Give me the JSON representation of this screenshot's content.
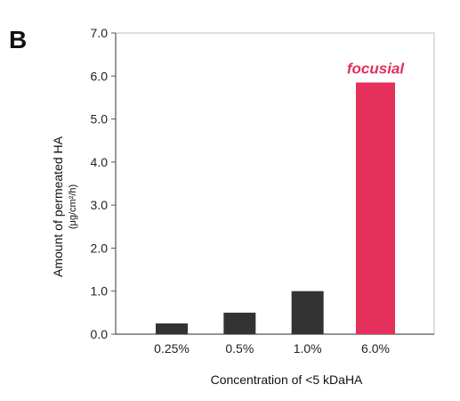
{
  "panel_label": "B",
  "colors": {
    "bar_default": "#333333",
    "bar_highlight": "#E4305A",
    "axis": "#555555",
    "text": "#222222",
    "frame": "#bfbfbf"
  },
  "chart_data": {
    "type": "bar",
    "title": "",
    "xlabel": "Concentration of <5 kDaHA",
    "ylabel": "Amount of permeated HA",
    "ylabel_unit": "(μg/cm²/h)",
    "categories": [
      "0.25%",
      "0.5%",
      "1.0%",
      "6.0%"
    ],
    "values": [
      0.25,
      0.5,
      1.0,
      5.85
    ],
    "highlight_index": 3,
    "annotation": {
      "text": "focusial",
      "category_index": 3
    },
    "ylim": [
      0,
      7
    ],
    "yticks": [
      0.0,
      1.0,
      2.0,
      3.0,
      4.0,
      5.0,
      6.0,
      7.0
    ],
    "ytick_labels": [
      "0.0",
      "1.0",
      "2.0",
      "3.0",
      "4.0",
      "5.0",
      "6.0",
      "7.0"
    ],
    "grid": false,
    "legend": "none"
  }
}
